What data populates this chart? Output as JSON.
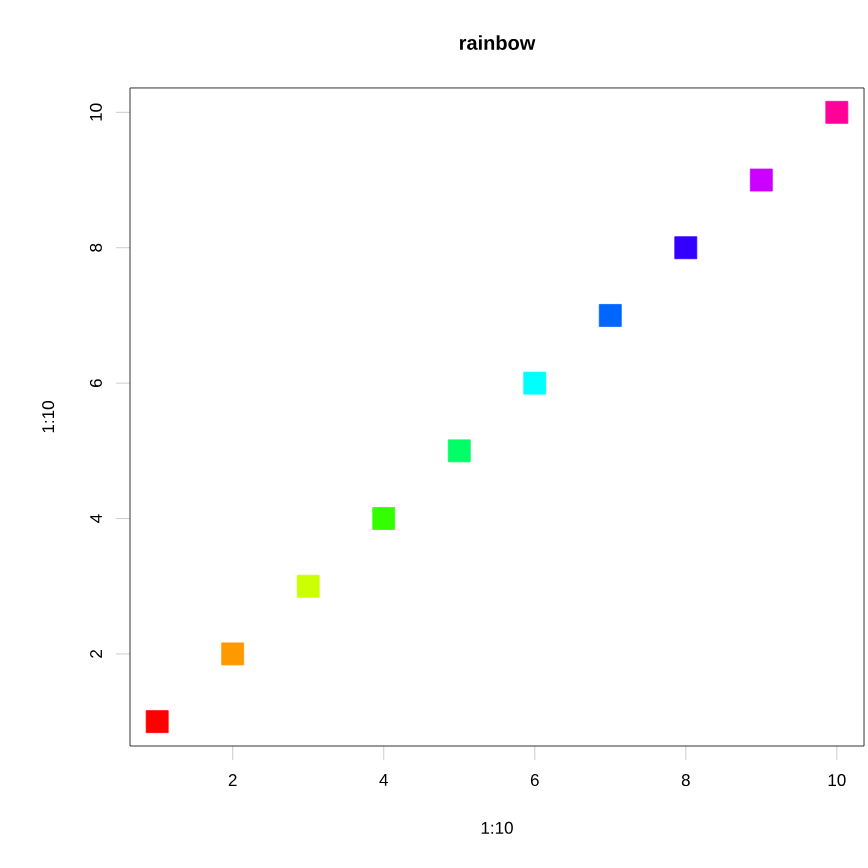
{
  "chart_data": {
    "type": "scatter",
    "title": "rainbow",
    "xlabel": "1:10",
    "ylabel": "1:10",
    "x": [
      1,
      2,
      3,
      4,
      5,
      6,
      7,
      8,
      9,
      10
    ],
    "values": [
      1,
      2,
      3,
      4,
      5,
      6,
      7,
      8,
      9,
      10
    ],
    "colors": [
      "#ff0000",
      "#ff9900",
      "#ccff00",
      "#33ff00",
      "#00ff66",
      "#00ffff",
      "#0066ff",
      "#3300ff",
      "#cc00ff",
      "#ff0099"
    ],
    "marker": "square",
    "xlim": [
      0.64,
      10.36
    ],
    "ylim": [
      0.64,
      10.36
    ],
    "xticks": [
      2,
      4,
      6,
      8,
      10
    ],
    "yticks": [
      2,
      4,
      6,
      8,
      10
    ]
  }
}
